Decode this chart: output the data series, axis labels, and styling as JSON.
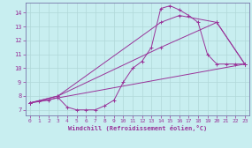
{
  "xlabel": "Windchill (Refroidissement éolien,°C)",
  "bg_color": "#c8eef0",
  "grid_color": "#b0d8d8",
  "line_color": "#993399",
  "spine_color": "#7777aa",
  "xlim": [
    -0.5,
    23.5
  ],
  "ylim": [
    6.6,
    14.7
  ],
  "yticks": [
    7,
    8,
    9,
    10,
    11,
    12,
    13,
    14
  ],
  "xticks": [
    0,
    1,
    2,
    3,
    4,
    5,
    6,
    7,
    8,
    9,
    10,
    11,
    12,
    13,
    14,
    15,
    16,
    17,
    18,
    19,
    20,
    21,
    22,
    23
  ],
  "series1_x": [
    0,
    1,
    2,
    3,
    4,
    5,
    6,
    7,
    8,
    9,
    10,
    11,
    12,
    13,
    14,
    15,
    16,
    17,
    18,
    19,
    20,
    21,
    22,
    23
  ],
  "series1_y": [
    7.5,
    7.6,
    7.7,
    7.9,
    7.2,
    7.0,
    7.0,
    7.0,
    7.3,
    7.7,
    9.0,
    10.0,
    10.5,
    11.5,
    14.3,
    14.5,
    14.2,
    13.8,
    13.3,
    11.0,
    10.3,
    10.3,
    10.3,
    10.3
  ],
  "series2_x": [
    0,
    3,
    14,
    16,
    20,
    23
  ],
  "series2_y": [
    7.5,
    8.0,
    13.3,
    13.8,
    13.3,
    10.3
  ],
  "series3_x": [
    0,
    3,
    14,
    20,
    23
  ],
  "series3_y": [
    7.5,
    8.0,
    11.5,
    13.3,
    10.3
  ],
  "series4_x": [
    0,
    23
  ],
  "series4_y": [
    7.5,
    10.3
  ]
}
